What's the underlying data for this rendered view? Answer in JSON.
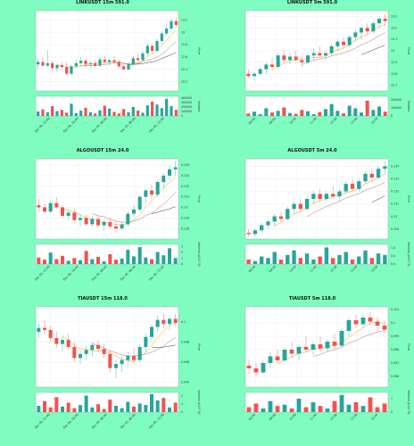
{
  "colors": {
    "background": "#7ffdc0",
    "up": "#26a69a",
    "down": "#ef5350",
    "ma_fast": "#f2a000",
    "ma_slow": "#b07070",
    "ma_long": "#3a3a3a",
    "panel_bg": "#ffffff",
    "grid": "#e2e2e2"
  },
  "chart_data": [
    {
      "id": "link-15m",
      "type": "candlestick",
      "title": "LINKUSDT 15m 591.0",
      "price_label": "Price",
      "volume_label": "Volume",
      "price_ylim": [
        12.05,
        13.35
      ],
      "price_ticks": [
        12.2,
        12.4,
        12.6,
        12.8,
        13.0,
        13.2
      ],
      "volume_ticks": [
        "0",
        "100000",
        "200000",
        "300000",
        "400000"
      ],
      "volume_ylim": [
        0,
        480000
      ],
      "x_ticks": [
        "Dec 04, 12:00",
        "Dec 04, 18:00",
        "Dec 05, 00:00",
        "Dec 05, 06:00",
        "Dec 05, 12:00"
      ],
      "ohlc": [
        [
          12.48,
          12.58,
          12.4,
          12.52
        ],
        [
          12.52,
          12.6,
          12.45,
          12.46
        ],
        [
          12.46,
          12.72,
          12.42,
          12.5
        ],
        [
          12.5,
          12.55,
          12.38,
          12.42
        ],
        [
          12.42,
          12.5,
          12.36,
          12.47
        ],
        [
          12.47,
          12.52,
          12.4,
          12.44
        ],
        [
          12.44,
          12.52,
          12.3,
          12.33
        ],
        [
          12.33,
          12.48,
          12.3,
          12.45
        ],
        [
          12.45,
          12.55,
          12.42,
          12.5
        ],
        [
          12.5,
          12.6,
          12.46,
          12.54
        ],
        [
          12.54,
          12.58,
          12.44,
          12.48
        ],
        [
          12.48,
          12.54,
          12.42,
          12.5
        ],
        [
          12.5,
          12.55,
          12.44,
          12.46
        ],
        [
          12.46,
          12.6,
          12.44,
          12.56
        ],
        [
          12.56,
          12.62,
          12.5,
          12.52
        ],
        [
          12.52,
          12.58,
          12.46,
          12.55
        ],
        [
          12.55,
          12.62,
          12.5,
          12.52
        ],
        [
          12.52,
          12.56,
          12.42,
          12.45
        ],
        [
          12.45,
          12.5,
          12.38,
          12.4
        ],
        [
          12.4,
          12.52,
          12.38,
          12.48
        ],
        [
          12.48,
          12.62,
          12.46,
          12.58
        ],
        [
          12.58,
          12.66,
          12.52,
          12.55
        ],
        [
          12.55,
          12.7,
          12.54,
          12.66
        ],
        [
          12.66,
          12.82,
          12.62,
          12.78
        ],
        [
          12.78,
          12.8,
          12.66,
          12.7
        ],
        [
          12.7,
          12.9,
          12.68,
          12.86
        ],
        [
          12.86,
          13.02,
          12.82,
          12.98
        ],
        [
          12.98,
          13.12,
          12.94,
          13.06
        ],
        [
          13.06,
          13.22,
          13.0,
          13.18
        ],
        [
          13.18,
          13.24,
          13.08,
          13.12
        ]
      ],
      "volume": [
        110000,
        160000,
        90000,
        240000,
        120000,
        150000,
        80000,
        300000,
        70000,
        130000,
        200000,
        90000,
        60000,
        140000,
        250000,
        180000,
        100000,
        60000,
        170000,
        90000,
        220000,
        130000,
        80000,
        260000,
        350000,
        280000,
        190000,
        420000,
        240000,
        150000
      ]
    },
    {
      "id": "link-5m",
      "type": "candlestick",
      "title": "LINKUSDT 5m 591.0",
      "price_label": "Price",
      "volume_label": "Volume",
      "price_ylim": [
        12.65,
        13.35
      ],
      "price_ticks": [
        12.7,
        12.8,
        12.9,
        13.0,
        13.1,
        13.2,
        13.3
      ],
      "volume_ticks": [
        "0",
        "100000",
        "200000"
      ],
      "volume_ylim": [
        0,
        230000
      ],
      "x_ticks": [
        "08:00",
        "09:00",
        "10:00",
        "11:00",
        "12:00",
        "13:00",
        "14:00"
      ],
      "ohlc": [
        [
          12.8,
          12.84,
          12.76,
          12.78
        ],
        [
          12.78,
          12.82,
          12.74,
          12.8
        ],
        [
          12.8,
          12.86,
          12.78,
          12.84
        ],
        [
          12.84,
          12.9,
          12.8,
          12.88
        ],
        [
          12.88,
          12.94,
          12.84,
          12.86
        ],
        [
          12.86,
          12.98,
          12.84,
          12.96
        ],
        [
          12.96,
          13.0,
          12.9,
          12.92
        ],
        [
          12.92,
          12.98,
          12.88,
          12.95
        ],
        [
          12.95,
          13.0,
          12.9,
          12.92
        ],
        [
          12.92,
          12.96,
          12.86,
          12.9
        ],
        [
          12.9,
          12.98,
          12.88,
          12.96
        ],
        [
          12.96,
          13.02,
          12.92,
          12.98
        ],
        [
          12.98,
          13.04,
          12.94,
          12.96
        ],
        [
          12.96,
          13.0,
          12.92,
          12.98
        ],
        [
          12.98,
          13.06,
          12.96,
          13.04
        ],
        [
          13.04,
          13.1,
          13.0,
          13.08
        ],
        [
          13.08,
          13.12,
          13.02,
          13.05
        ],
        [
          13.05,
          13.14,
          13.03,
          13.12
        ],
        [
          13.12,
          13.18,
          13.08,
          13.16
        ],
        [
          13.16,
          13.22,
          13.1,
          13.2
        ],
        [
          13.2,
          13.24,
          13.14,
          13.17
        ],
        [
          13.17,
          13.26,
          13.15,
          13.24
        ],
        [
          13.24,
          13.3,
          13.2,
          13.28
        ],
        [
          13.28,
          13.32,
          13.22,
          13.26
        ]
      ],
      "volume": [
        30000,
        50000,
        20000,
        90000,
        40000,
        60000,
        100000,
        35000,
        25000,
        70000,
        55000,
        20000,
        45000,
        80000,
        140000,
        60000,
        30000,
        120000,
        90000,
        40000,
        180000,
        70000,
        110000,
        50000
      ]
    },
    {
      "id": "algo-15m",
      "type": "candlestick",
      "title": "ALGOUSDT 15m 24.0",
      "price_label": "Price",
      "volume_label": "Volume (x10^5)",
      "price_ylim": [
        0.127,
        0.1346
      ],
      "price_ticks": [
        0.128,
        0.129,
        0.13,
        0.131,
        0.132,
        0.133,
        0.134
      ],
      "volume_ticks": [
        "0",
        "1",
        "2",
        "3"
      ],
      "volume_ylim": [
        0,
        3.6
      ],
      "x_ticks": [
        "Dec 04, 12:00",
        "Dec 04, 18:00",
        "Dec 05, 00:00",
        "Dec 05, 06:00",
        "Dec 05, 12:00"
      ],
      "ohlc": [
        [
          0.1302,
          0.1308,
          0.1296,
          0.13
        ],
        [
          0.13,
          0.1304,
          0.1294,
          0.1296
        ],
        [
          0.1296,
          0.1306,
          0.1294,
          0.1304
        ],
        [
          0.1304,
          0.131,
          0.1298,
          0.13
        ],
        [
          0.13,
          0.1302,
          0.129,
          0.1292
        ],
        [
          0.1292,
          0.1298,
          0.1288,
          0.1295
        ],
        [
          0.1295,
          0.1298,
          0.1286,
          0.1288
        ],
        [
          0.1288,
          0.1294,
          0.1282,
          0.129
        ],
        [
          0.129,
          0.1293,
          0.1282,
          0.1284
        ],
        [
          0.1284,
          0.1292,
          0.1282,
          0.1289
        ],
        [
          0.1289,
          0.1292,
          0.128,
          0.1283
        ],
        [
          0.1283,
          0.1288,
          0.1278,
          0.1286
        ],
        [
          0.1286,
          0.129,
          0.128,
          0.1282
        ],
        [
          0.1282,
          0.1287,
          0.1276,
          0.128
        ],
        [
          0.128,
          0.1286,
          0.1278,
          0.1284
        ],
        [
          0.1284,
          0.1296,
          0.1282,
          0.1294
        ],
        [
          0.1294,
          0.1302,
          0.129,
          0.1298
        ],
        [
          0.1298,
          0.1312,
          0.1296,
          0.131
        ],
        [
          0.131,
          0.1318,
          0.1304,
          0.1316
        ],
        [
          0.1316,
          0.1322,
          0.1308,
          0.1312
        ],
        [
          0.1312,
          0.1326,
          0.131,
          0.1324
        ],
        [
          0.1324,
          0.1332,
          0.1318,
          0.133
        ],
        [
          0.133,
          0.134,
          0.1326,
          0.1336
        ],
        [
          0.1336,
          0.1344,
          0.133,
          0.1338
        ]
      ],
      "volume": [
        1.2,
        0.8,
        2.1,
        0.9,
        1.5,
        0.6,
        1.1,
        0.7,
        2.4,
        0.9,
        1.3,
        0.5,
        1.8,
        0.8,
        1.0,
        2.6,
        1.4,
        3.1,
        1.2,
        0.9,
        2.2,
        1.6,
        2.9,
        1.1
      ]
    },
    {
      "id": "algo-5m",
      "type": "candlestick",
      "title": "ALGOUSDT 5m 24.0",
      "price_label": "Price",
      "volume_label": "Volume (x10^5)",
      "price_ylim": [
        0.1282,
        0.1346
      ],
      "price_ticks": [
        0.129,
        0.13,
        0.131,
        0.132,
        0.133,
        0.134
      ],
      "volume_ticks": [
        "0.0",
        "0.5",
        "1.0"
      ],
      "volume_ylim": [
        0,
        1.3
      ],
      "x_ticks": [
        "08:00",
        "09:00",
        "10:00",
        "11:00",
        "12:00",
        "13:00",
        "14:00"
      ],
      "ohlc": [
        [
          0.1287,
          0.129,
          0.1284,
          0.1286
        ],
        [
          0.1286,
          0.129,
          0.1284,
          0.1289
        ],
        [
          0.1289,
          0.1295,
          0.1287,
          0.1293
        ],
        [
          0.1293,
          0.1298,
          0.129,
          0.1296
        ],
        [
          0.1296,
          0.1302,
          0.1292,
          0.13
        ],
        [
          0.13,
          0.1304,
          0.1296,
          0.1298
        ],
        [
          0.1298,
          0.1308,
          0.1297,
          0.1306
        ],
        [
          0.1306,
          0.1312,
          0.1302,
          0.131
        ],
        [
          0.131,
          0.1314,
          0.1304,
          0.1306
        ],
        [
          0.1306,
          0.1316,
          0.1304,
          0.1314
        ],
        [
          0.1314,
          0.132,
          0.131,
          0.1318
        ],
        [
          0.1318,
          0.1322,
          0.1312,
          0.1314
        ],
        [
          0.1314,
          0.132,
          0.1312,
          0.1318
        ],
        [
          0.1318,
          0.1324,
          0.1314,
          0.1316
        ],
        [
          0.1316,
          0.1322,
          0.1312,
          0.132
        ],
        [
          0.132,
          0.1328,
          0.1318,
          0.1326
        ],
        [
          0.1326,
          0.133,
          0.132,
          0.1322
        ],
        [
          0.1322,
          0.133,
          0.132,
          0.1328
        ],
        [
          0.1328,
          0.1336,
          0.1326,
          0.1334
        ],
        [
          0.1334,
          0.1338,
          0.1328,
          0.1331
        ],
        [
          0.1331,
          0.134,
          0.133,
          0.1338
        ],
        [
          0.1338,
          0.1344,
          0.1334,
          0.134
        ]
      ],
      "volume": [
        0.3,
        0.2,
        0.5,
        0.4,
        0.8,
        0.3,
        0.6,
        0.9,
        0.4,
        0.7,
        0.3,
        0.5,
        1.1,
        0.4,
        0.6,
        0.8,
        0.3,
        0.5,
        0.9,
        0.4,
        0.7,
        0.6
      ]
    },
    {
      "id": "tia-15m",
      "type": "candlestick",
      "title": "TIAUSDT 15m 118.0",
      "price_label": "Price",
      "volume_label": "Volume (x10^4)",
      "price_ylim": [
        0.0935,
        0.1015
      ],
      "price_ticks": [
        0.094,
        0.096,
        0.098,
        0.1
      ],
      "volume_ticks": [
        "0",
        "1",
        "2"
      ],
      "volume_ylim": [
        0,
        2.5
      ],
      "x_ticks": [
        "Dec 04, 12:00",
        "Dec 04, 18:00",
        "Dec 05, 00:00",
        "Dec 05, 06:00",
        "Dec 05, 12:00"
      ],
      "ohlc": [
        [
          0.099,
          0.0998,
          0.0984,
          0.0994
        ],
        [
          0.0994,
          0.1002,
          0.0988,
          0.0992
        ],
        [
          0.0992,
          0.0996,
          0.098,
          0.0984
        ],
        [
          0.0984,
          0.099,
          0.0974,
          0.0978
        ],
        [
          0.0978,
          0.0986,
          0.097,
          0.0982
        ],
        [
          0.0982,
          0.0988,
          0.0972,
          0.0975
        ],
        [
          0.0975,
          0.098,
          0.096,
          0.0964
        ],
        [
          0.0964,
          0.0972,
          0.0958,
          0.0968
        ],
        [
          0.0968,
          0.0976,
          0.0962,
          0.0972
        ],
        [
          0.0972,
          0.098,
          0.0966,
          0.0977
        ],
        [
          0.0977,
          0.0982,
          0.097,
          0.0973
        ],
        [
          0.0973,
          0.0978,
          0.0964,
          0.0968
        ],
        [
          0.0968,
          0.0972,
          0.095,
          0.0954
        ],
        [
          0.0954,
          0.0962,
          0.0944,
          0.0958
        ],
        [
          0.0958,
          0.0966,
          0.095,
          0.0962
        ],
        [
          0.0962,
          0.097,
          0.0956,
          0.0966
        ],
        [
          0.0966,
          0.0974,
          0.0958,
          0.0962
        ],
        [
          0.0962,
          0.0978,
          0.096,
          0.0975
        ],
        [
          0.0975,
          0.0988,
          0.097,
          0.0985
        ],
        [
          0.0985,
          0.0998,
          0.098,
          0.0995
        ],
        [
          0.0995,
          0.1006,
          0.099,
          0.1002
        ],
        [
          0.1002,
          0.1008,
          0.0994,
          0.0998
        ],
        [
          0.0998,
          0.1006,
          0.0992,
          0.1003
        ],
        [
          0.1003,
          0.1008,
          0.0996,
          0.0999
        ]
      ],
      "volume": [
        0.8,
        1.4,
        0.6,
        1.9,
        0.7,
        1.2,
        0.5,
        0.9,
        2.1,
        0.6,
        1.0,
        0.4,
        1.6,
        0.8,
        0.5,
        1.3,
        0.7,
        1.1,
        0.9,
        2.3,
        1.5,
        1.8,
        0.6,
        1.2
      ]
    },
    {
      "id": "tia-5m",
      "type": "candlestick",
      "title": "TIAUSDT 5m 118.0",
      "price_label": "Price",
      "volume_label": "Volume (x10^4)",
      "price_ylim": [
        0.0952,
        0.1012
      ],
      "price_ticks": [
        0.096,
        0.097,
        0.098,
        0.099,
        0.1,
        0.101
      ],
      "volume_ticks": [
        "0",
        "1"
      ],
      "volume_ylim": [
        0,
        1.6
      ],
      "x_ticks": [
        "08:00",
        "09:00",
        "10:00",
        "11:00",
        "12:00",
        "13:00",
        "14:00"
      ],
      "ohlc": [
        [
          0.0968,
          0.0972,
          0.0962,
          0.0966
        ],
        [
          0.0966,
          0.097,
          0.096,
          0.0963
        ],
        [
          0.0963,
          0.0972,
          0.0962,
          0.097
        ],
        [
          0.097,
          0.0978,
          0.0966,
          0.0975
        ],
        [
          0.0975,
          0.098,
          0.097,
          0.0972
        ],
        [
          0.0972,
          0.0982,
          0.097,
          0.098
        ],
        [
          0.098,
          0.0986,
          0.0974,
          0.0977
        ],
        [
          0.0977,
          0.0984,
          0.0972,
          0.0982
        ],
        [
          0.0982,
          0.099,
          0.0978,
          0.098
        ],
        [
          0.098,
          0.0986,
          0.0976,
          0.0984
        ],
        [
          0.0984,
          0.099,
          0.0978,
          0.0981
        ],
        [
          0.0981,
          0.0988,
          0.0979,
          0.0986
        ],
        [
          0.0986,
          0.0992,
          0.098,
          0.0983
        ],
        [
          0.0983,
          0.0996,
          0.0982,
          0.0994
        ],
        [
          0.0994,
          0.1004,
          0.099,
          0.1002
        ],
        [
          0.1002,
          0.1006,
          0.0996,
          0.0999
        ],
        [
          0.0999,
          0.1006,
          0.0996,
          0.1004
        ],
        [
          0.1004,
          0.1008,
          0.0998,
          0.1001
        ],
        [
          0.1001,
          0.1004,
          0.0994,
          0.0998
        ],
        [
          0.0998,
          0.1002,
          0.0992,
          0.0995
        ]
      ],
      "volume": [
        0.4,
        0.7,
        0.3,
        0.9,
        0.5,
        0.6,
        0.3,
        1.1,
        0.4,
        0.8,
        0.5,
        0.3,
        0.9,
        1.4,
        0.6,
        0.8,
        0.5,
        1.2,
        0.4,
        0.7
      ]
    }
  ]
}
